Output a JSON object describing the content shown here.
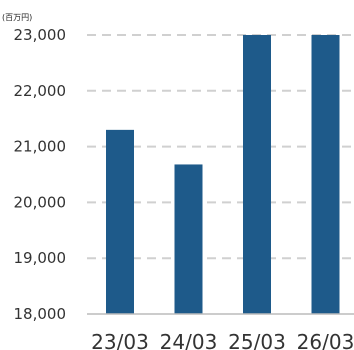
{
  "chart_data": {
    "type": "bar",
    "unit": "(百万円)",
    "categories": [
      "23/03",
      "24/03",
      "25/03",
      "26/03"
    ],
    "values": [
      21300,
      20680,
      23000,
      23000
    ],
    "ylim": [
      18000,
      23000
    ],
    "yticks": [
      18000,
      19000,
      20000,
      21000,
      22000,
      23000
    ],
    "ytick_labels": [
      "18,000",
      "19,000",
      "20,000",
      "21,000",
      "22,000",
      "23,000"
    ],
    "grid": true,
    "bar_color": "#1e5a8a",
    "grid_color": "#d0d0d0",
    "axis_color": "#bbbbbb"
  }
}
